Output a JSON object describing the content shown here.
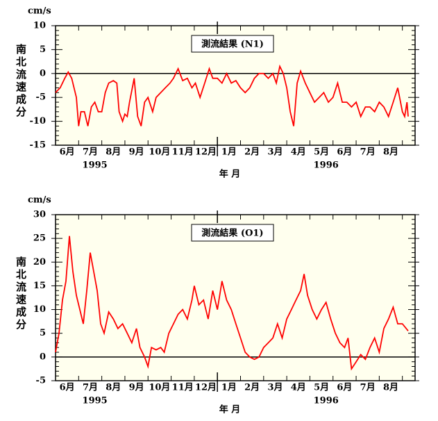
{
  "chart_data": [
    {
      "type": "line",
      "title": "測流結果 (N1)",
      "unit": "cm/s",
      "ylabel": "南北流速成分",
      "xlabel": "年 月",
      "categories": [
        "6月",
        "7月",
        "8月",
        "9月",
        "10月",
        "11月",
        "12月",
        "1月",
        "2月",
        "3月",
        "4月",
        "5月",
        "6月",
        "7月",
        "8月"
      ],
      "years": [
        "1995",
        "1996"
      ],
      "xlim": [
        0,
        15.55
      ],
      "ylim": [
        -15,
        10
      ],
      "yticks": [
        -15,
        -10,
        -5,
        0,
        5,
        10
      ],
      "series": [
        {
          "name": "N1",
          "color": "#ff0000",
          "x": [
            0,
            0.2,
            0.4,
            0.55,
            0.7,
            0.9,
            1.0,
            1.1,
            1.25,
            1.4,
            1.55,
            1.7,
            1.85,
            2.0,
            2.15,
            2.3,
            2.5,
            2.65,
            2.75,
            2.9,
            3.0,
            3.1,
            3.2,
            3.4,
            3.55,
            3.7,
            3.85,
            4.0,
            4.2,
            4.35,
            4.55,
            4.75,
            4.95,
            5.1,
            5.3,
            5.5,
            5.7,
            5.9,
            6.05,
            6.25,
            6.45,
            6.65,
            6.8,
            7.0,
            7.2,
            7.4,
            7.6,
            7.8,
            8.0,
            8.2,
            8.4,
            8.6,
            8.8,
            9.0,
            9.2,
            9.4,
            9.55,
            9.7,
            9.85,
            10.0,
            10.15,
            10.3,
            10.45,
            10.6,
            10.8,
            11.0,
            11.2,
            11.4,
            11.6,
            11.8,
            12.0,
            12.2,
            12.4,
            12.6,
            12.8,
            13.0,
            13.2,
            13.4,
            13.6,
            13.8,
            14.0,
            14.2,
            14.4,
            14.6,
            14.8,
            15.0,
            15.1,
            15.2,
            15.25
          ],
          "values": [
            -4,
            -3,
            -1,
            0.3,
            -1,
            -5,
            -11,
            -8,
            -8,
            -11,
            -7,
            -6,
            -8,
            -8,
            -4,
            -2,
            -1.5,
            -2,
            -8,
            -10,
            -8.5,
            -9,
            -6,
            -1,
            -9,
            -11,
            -6,
            -5,
            -8,
            -5,
            -4,
            -3,
            -2,
            -1,
            1,
            -1.5,
            -1,
            -3,
            -2,
            -5,
            -2,
            1,
            -1,
            -1,
            -2,
            0,
            -2,
            -1.5,
            -3,
            -4,
            -3,
            -1,
            0,
            0,
            -1,
            0,
            -2,
            1.5,
            0,
            -3,
            -8,
            -11,
            -2,
            0.5,
            -2,
            -4,
            -6,
            -5,
            -4,
            -6,
            -5,
            -2,
            -6,
            -6,
            -7,
            -6,
            -9,
            -7,
            -7,
            -8,
            -6,
            -7,
            -9,
            -6,
            -3,
            -8,
            -9,
            -6,
            -9
          ]
        }
      ]
    },
    {
      "type": "line",
      "title": "測流結果 (O1)",
      "unit": "cm/s",
      "ylabel": "南北流速成分",
      "xlabel": "年 月",
      "categories": [
        "6月",
        "7月",
        "8月",
        "9月",
        "10月",
        "11月",
        "12月",
        "1月",
        "2月",
        "3月",
        "4月",
        "5月",
        "6月",
        "7月",
        "8月"
      ],
      "years": [
        "1995",
        "1996"
      ],
      "xlim": [
        0,
        15.55
      ],
      "ylim": [
        -5,
        30
      ],
      "yticks": [
        -5,
        0,
        5,
        10,
        15,
        20,
        25,
        30
      ],
      "series": [
        {
          "name": "O1",
          "color": "#ff0000",
          "x": [
            0,
            0.15,
            0.3,
            0.45,
            0.6,
            0.75,
            0.9,
            1.05,
            1.2,
            1.35,
            1.5,
            1.65,
            1.8,
            1.95,
            2.1,
            2.3,
            2.5,
            2.7,
            2.9,
            3.1,
            3.3,
            3.5,
            3.65,
            3.85,
            4.0,
            4.15,
            4.35,
            4.55,
            4.7,
            4.9,
            5.1,
            5.3,
            5.5,
            5.7,
            5.9,
            6.0,
            6.2,
            6.4,
            6.6,
            6.8,
            7.0,
            7.2,
            7.4,
            7.6,
            7.8,
            8.0,
            8.2,
            8.4,
            8.6,
            8.8,
            9.0,
            9.2,
            9.4,
            9.6,
            9.8,
            10.0,
            10.2,
            10.4,
            10.6,
            10.75,
            10.9,
            11.1,
            11.3,
            11.5,
            11.7,
            11.9,
            12.1,
            12.3,
            12.5,
            12.65,
            12.8,
            13.0,
            13.2,
            13.4,
            13.6,
            13.8,
            14.0,
            14.2,
            14.4,
            14.6,
            14.8,
            15.0,
            15.25
          ],
          "values": [
            1,
            5,
            12,
            16,
            25.5,
            18,
            13,
            10,
            7,
            14,
            22,
            18,
            14,
            7,
            5,
            9.5,
            8,
            6,
            7,
            5,
            3,
            6,
            2,
            0,
            -2,
            2,
            1.5,
            2,
            1,
            5,
            7,
            9,
            10,
            8,
            12,
            15,
            11,
            12,
            8,
            14,
            10,
            16,
            12,
            10,
            7,
            4,
            1,
            0,
            -0.5,
            0,
            2,
            3,
            4,
            7,
            4,
            8,
            10,
            12,
            14,
            17.5,
            13,
            10,
            8,
            10,
            11.5,
            8,
            5,
            3,
            2,
            4,
            -2.5,
            -1,
            0.5,
            -0.5,
            2,
            4,
            1,
            6,
            8,
            10.5,
            7,
            7,
            5.5
          ]
        }
      ]
    }
  ]
}
